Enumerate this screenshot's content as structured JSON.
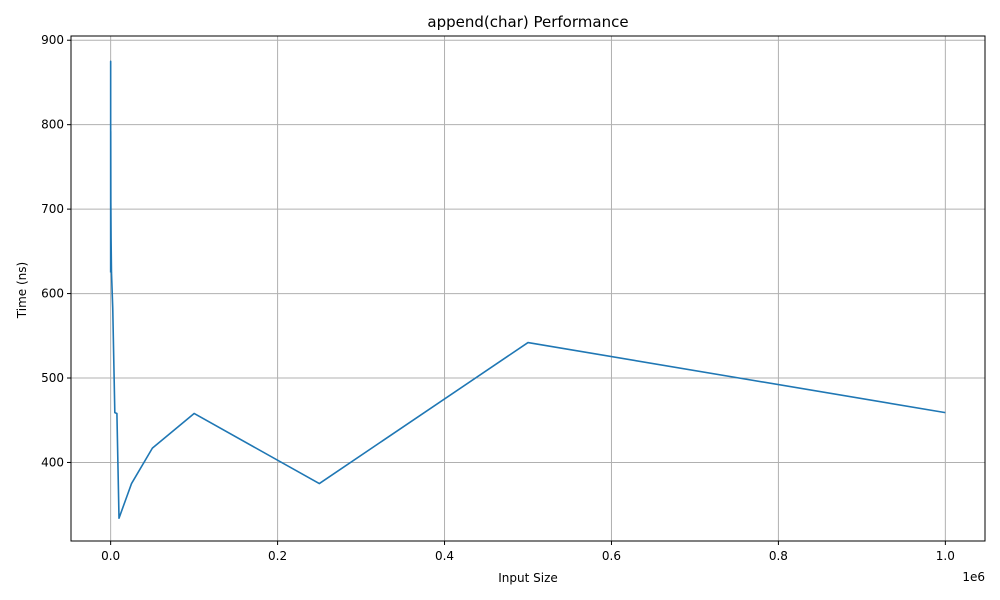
{
  "chart_data": {
    "type": "line",
    "title": "append(char) Performance",
    "xlabel": "Input Size",
    "ylabel": "Time (ns)",
    "x_offset_label": "1e6",
    "xlim": [
      -47500,
      1047500
    ],
    "ylim": [
      307,
      905
    ],
    "grid": true,
    "colors": {
      "series": "#1f77b4"
    },
    "x_ticks": [
      {
        "value": 0,
        "label": "0.0"
      },
      {
        "value": 200000,
        "label": "0.2"
      },
      {
        "value": 400000,
        "label": "0.4"
      },
      {
        "value": 600000,
        "label": "0.6"
      },
      {
        "value": 800000,
        "label": "0.8"
      },
      {
        "value": 1000000,
        "label": "1.0"
      }
    ],
    "y_ticks": [
      {
        "value": 400,
        "label": "400"
      },
      {
        "value": 500,
        "label": "500"
      },
      {
        "value": 600,
        "label": "600"
      },
      {
        "value": 700,
        "label": "700"
      },
      {
        "value": 800,
        "label": "800"
      },
      {
        "value": 900,
        "label": "900"
      }
    ],
    "series": [
      {
        "x": [
          1,
          5,
          10,
          50,
          100,
          250,
          500,
          1000,
          2500,
          5000,
          7500,
          10000,
          25000,
          50000,
          100000,
          250000,
          500000,
          1000000
        ],
        "y": [
          625,
          834,
          875,
          666,
          792,
          708,
          666,
          625,
          583,
          459,
          458,
          334,
          375,
          417,
          458,
          375,
          542,
          459
        ]
      }
    ]
  }
}
